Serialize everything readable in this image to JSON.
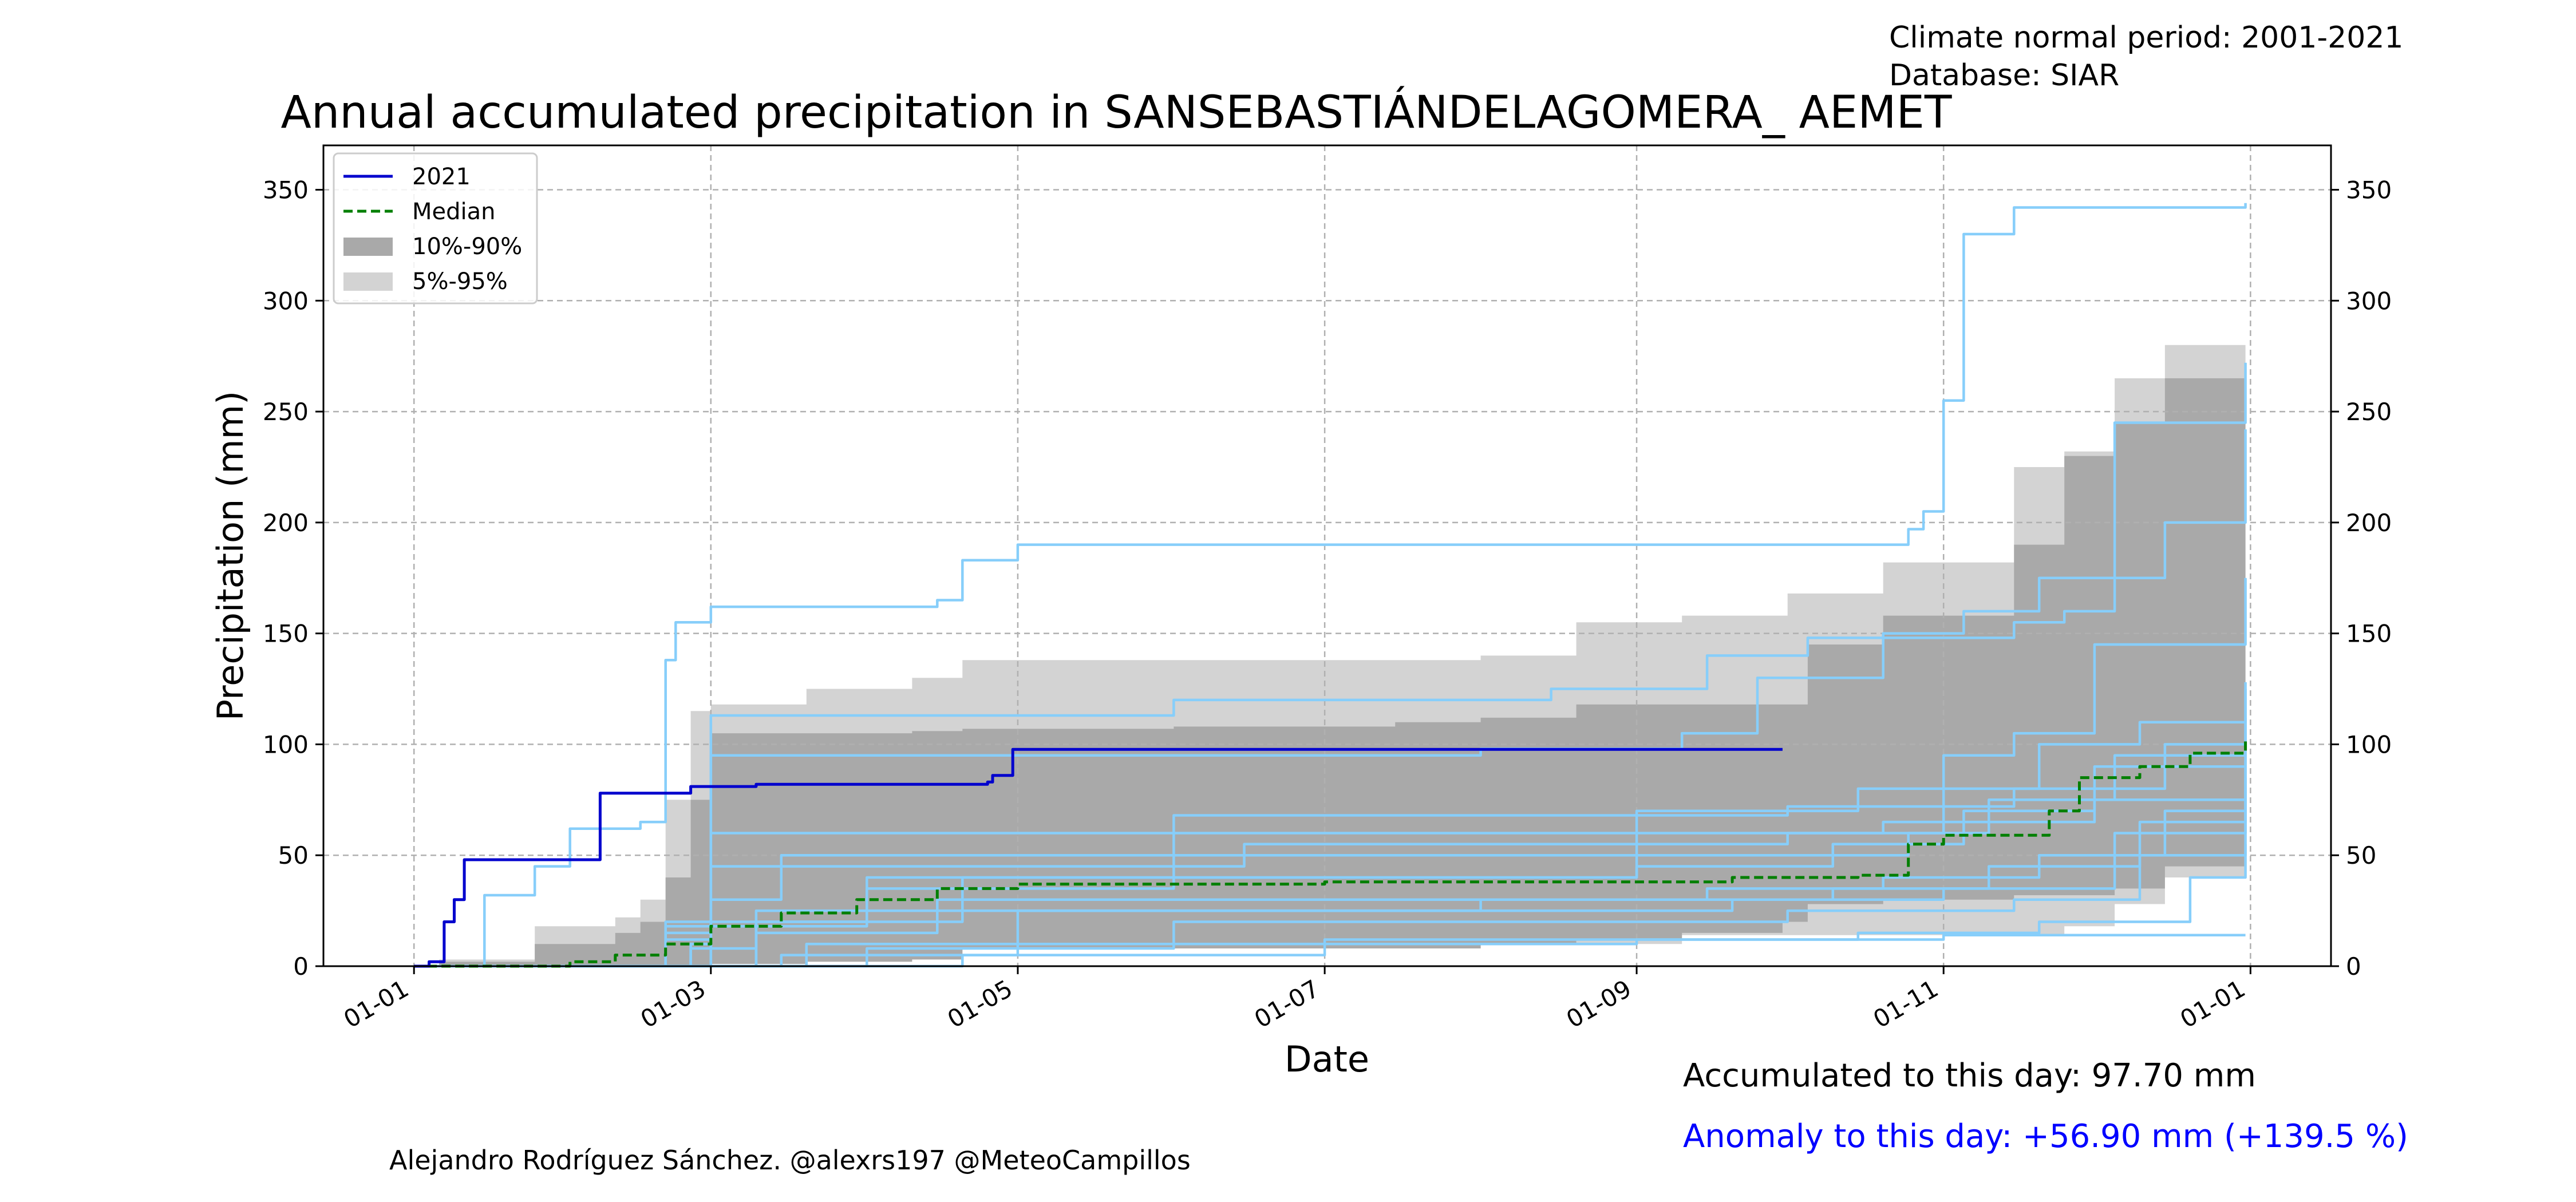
{
  "header": {
    "period_line": "Climate normal period: 2001-2021",
    "database_line": "Database: SIAR"
  },
  "footer": {
    "accumulated": "Accumulated to this day: 97.70 mm",
    "anomaly": "Anomaly to this day: +56.90 mm (+139.5 %)",
    "credit": "Alejandro Rodríguez Sánchez. @alexrs197 @MeteoCampillos"
  },
  "colors": {
    "current_year": "#0000cd",
    "median": "#007f00",
    "band_10_90": "#a9a9a9",
    "band_5_95": "#d3d3d3",
    "past_years": "#87cefa",
    "anomaly_text": "#0000ff"
  },
  "chart_data": {
    "type": "line",
    "title": "Annual accumulated precipitation in SANSEBASTIÁNDELAGOMERA_ AEMET",
    "xlabel": "Date",
    "ylabel": "Precipitation (mm)",
    "xlim": [
      "2020-12-14",
      "2022-01-17"
    ],
    "ylim": [
      0,
      370
    ],
    "x_ticks": [
      {
        "date": "2021-01-01",
        "label": "01-01"
      },
      {
        "date": "2021-03-01",
        "label": "01-03"
      },
      {
        "date": "2021-05-01",
        "label": "01-05"
      },
      {
        "date": "2021-07-01",
        "label": "01-07"
      },
      {
        "date": "2021-09-01",
        "label": "01-09"
      },
      {
        "date": "2021-11-01",
        "label": "01-11"
      },
      {
        "date": "2022-01-01",
        "label": "01-01"
      }
    ],
    "y_ticks": [
      0,
      50,
      100,
      150,
      200,
      250,
      300,
      350
    ],
    "grid": true,
    "legend_position": "top-left",
    "legend": [
      {
        "label": "2021",
        "kind": "line",
        "color": "#0000cd"
      },
      {
        "label": "Median",
        "kind": "dashed",
        "color": "#007f00"
      },
      {
        "label": "10%-90%",
        "kind": "patch",
        "color": "#a9a9a9"
      },
      {
        "label": "5%-95%",
        "kind": "patch",
        "color": "#d3d3d3"
      }
    ],
    "band_5_95": {
      "x": [
        "2021-01-06",
        "2021-01-25",
        "2021-02-10",
        "2021-02-15",
        "2021-02-20",
        "2021-02-25",
        "2021-03-01",
        "2021-03-20",
        "2021-04-10",
        "2021-04-20",
        "2021-06-01",
        "2021-07-15",
        "2021-08-01",
        "2021-08-20",
        "2021-09-10",
        "2021-10-01",
        "2021-10-20",
        "2021-11-15",
        "2021-11-25",
        "2021-12-05",
        "2021-12-15",
        "2021-12-31"
      ],
      "upper": [
        3,
        18,
        22,
        30,
        75,
        115,
        118,
        125,
        130,
        138,
        138,
        138,
        140,
        155,
        158,
        168,
        182,
        225,
        232,
        265,
        280,
        287
      ],
      "lower": [
        0,
        0,
        0,
        0,
        0,
        1,
        2,
        4,
        5,
        8,
        8,
        8,
        10,
        10,
        14,
        14,
        14,
        14,
        18,
        28,
        40,
        50
      ]
    },
    "band_10_90": {
      "x": [
        "2021-01-06",
        "2021-01-25",
        "2021-02-10",
        "2021-02-15",
        "2021-02-20",
        "2021-02-25",
        "2021-03-01",
        "2021-03-20",
        "2021-04-10",
        "2021-04-20",
        "2021-06-01",
        "2021-07-15",
        "2021-08-01",
        "2021-08-20",
        "2021-09-10",
        "2021-09-30",
        "2021-10-05",
        "2021-10-20",
        "2021-11-15",
        "2021-11-25",
        "2021-12-05",
        "2021-12-15",
        "2021-12-31"
      ],
      "upper": [
        2,
        10,
        15,
        20,
        40,
        75,
        105,
        105,
        106,
        107,
        108,
        110,
        112,
        118,
        118,
        118,
        145,
        158,
        190,
        230,
        245,
        265,
        273
      ],
      "lower": [
        0,
        0,
        0,
        0,
        0,
        0,
        1,
        2,
        3,
        8,
        8,
        8,
        10,
        12,
        15,
        20,
        28,
        30,
        32,
        32,
        35,
        45,
        50
      ]
    },
    "series": [
      {
        "name": "2021",
        "style": "line",
        "color": "#0000cd",
        "x": [
          "2021-01-01",
          "2021-01-04",
          "2021-01-07",
          "2021-01-09",
          "2021-01-11",
          "2021-02-06",
          "2021-02-07",
          "2021-02-25",
          "2021-03-10",
          "2021-04-01",
          "2021-04-25",
          "2021-04-26",
          "2021-04-29",
          "2021-04-30",
          "2021-09-30"
        ],
        "y": [
          0,
          2,
          20,
          30,
          48,
          48,
          78,
          81,
          82,
          82,
          83,
          86,
          86,
          97.7,
          97.7
        ]
      },
      {
        "name": "Median",
        "style": "dashed",
        "color": "#007f00",
        "x": [
          "2021-01-01",
          "2021-01-20",
          "2021-02-01",
          "2021-02-10",
          "2021-02-20",
          "2021-03-01",
          "2021-03-15",
          "2021-03-30",
          "2021-04-15",
          "2021-05-01",
          "2021-07-01",
          "2021-09-01",
          "2021-09-20",
          "2021-10-15",
          "2021-10-25",
          "2021-11-01",
          "2021-11-15",
          "2021-11-22",
          "2021-11-28",
          "2021-12-10",
          "2021-12-20",
          "2021-12-31"
        ],
        "y": [
          0,
          0,
          2,
          5,
          10,
          18,
          24,
          30,
          35,
          37,
          38,
          38,
          40,
          41,
          55,
          59,
          59,
          70,
          85,
          90,
          96,
          102
        ]
      },
      {
        "style": "line",
        "color": "#87cefa",
        "x": [
          "2021-01-05",
          "2021-01-15",
          "2021-01-25",
          "2021-02-01",
          "2021-02-15",
          "2021-02-20",
          "2021-02-22",
          "2021-03-01",
          "2021-04-15",
          "2021-04-20",
          "2021-05-01",
          "2021-10-20",
          "2021-10-25",
          "2021-10-28",
          "2021-11-01",
          "2021-11-05",
          "2021-11-10",
          "2021-11-15",
          "2021-12-31"
        ],
        "y": [
          0,
          32,
          45,
          62,
          65,
          138,
          155,
          162,
          165,
          183,
          190,
          190,
          197,
          205,
          255,
          330,
          330,
          342,
          344
        ]
      },
      {
        "style": "line",
        "color": "#87cefa",
        "x": [
          "2021-01-10",
          "2021-02-20",
          "2021-03-01",
          "2021-06-01",
          "2021-08-15",
          "2021-09-15",
          "2021-10-05",
          "2021-11-15",
          "2021-11-25",
          "2021-12-05",
          "2021-12-31"
        ],
        "y": [
          0,
          20,
          113,
          120,
          125,
          140,
          148,
          155,
          160,
          245,
          272
        ]
      },
      {
        "style": "line",
        "color": "#87cefa",
        "x": [
          "2021-01-10",
          "2021-02-20",
          "2021-03-01",
          "2021-08-01",
          "2021-09-10",
          "2021-09-25",
          "2021-10-20",
          "2021-11-05",
          "2021-11-20",
          "2021-12-15",
          "2021-12-31"
        ],
        "y": [
          0,
          15,
          95,
          98,
          105,
          130,
          150,
          160,
          175,
          200,
          242
        ]
      },
      {
        "style": "line",
        "color": "#87cefa",
        "x": [
          "2021-01-15",
          "2021-02-25",
          "2021-03-01",
          "2021-09-01",
          "2021-10-15",
          "2021-11-01",
          "2021-11-15",
          "2021-12-01",
          "2021-12-31"
        ],
        "y": [
          0,
          10,
          60,
          70,
          80,
          95,
          105,
          145,
          175
        ]
      },
      {
        "style": "line",
        "color": "#87cefa",
        "x": [
          "2021-01-15",
          "2021-03-01",
          "2021-03-15",
          "2021-09-01",
          "2021-10-20",
          "2021-11-01",
          "2021-11-20",
          "2021-12-10",
          "2021-12-31"
        ],
        "y": [
          0,
          30,
          50,
          60,
          65,
          80,
          100,
          110,
          128
        ]
      },
      {
        "style": "line",
        "color": "#87cefa",
        "x": [
          "2021-01-20",
          "2021-03-10",
          "2021-04-01",
          "2021-09-01",
          "2021-10-10",
          "2021-11-05",
          "2021-12-01",
          "2021-12-31"
        ],
        "y": [
          0,
          20,
          40,
          45,
          55,
          70,
          90,
          105
        ]
      },
      {
        "style": "line",
        "color": "#87cefa",
        "x": [
          "2021-01-20",
          "2021-03-10",
          "2021-04-15",
          "2021-09-15",
          "2021-10-20",
          "2021-11-20",
          "2021-12-15",
          "2021-12-31"
        ],
        "y": [
          0,
          15,
          30,
          35,
          40,
          50,
          70,
          95
        ]
      },
      {
        "style": "line",
        "color": "#87cefa",
        "x": [
          "2021-02-01",
          "2021-03-20",
          "2021-05-01",
          "2021-09-20",
          "2021-11-01",
          "2021-12-05",
          "2021-12-31"
        ],
        "y": [
          0,
          10,
          25,
          30,
          35,
          60,
          80
        ]
      },
      {
        "style": "line",
        "color": "#87cefa",
        "x": [
          "2021-02-01",
          "2021-04-01",
          "2021-06-01",
          "2021-10-01",
          "2021-11-15",
          "2021-12-10",
          "2021-12-31"
        ],
        "y": [
          0,
          8,
          20,
          25,
          30,
          50,
          70
        ]
      },
      {
        "style": "line",
        "color": "#87cefa",
        "x": [
          "2021-02-10",
          "2021-04-20",
          "2021-07-01",
          "2021-10-15",
          "2021-11-20",
          "2021-12-20",
          "2021-12-31"
        ],
        "y": [
          0,
          5,
          12,
          15,
          20,
          40,
          55
        ]
      },
      {
        "style": "line",
        "color": "#87cefa",
        "x": [
          "2021-01-05",
          "2021-02-20",
          "2021-03-01",
          "2021-06-15",
          "2021-10-01",
          "2021-11-01",
          "2021-12-01",
          "2021-12-31"
        ],
        "y": [
          0,
          12,
          45,
          55,
          60,
          65,
          75,
          90
        ]
      },
      {
        "style": "line",
        "color": "#87cefa",
        "x": [
          "2021-01-10",
          "2021-02-25",
          "2021-03-10",
          "2021-08-01",
          "2021-10-10",
          "2021-11-10",
          "2021-12-10",
          "2021-12-31"
        ],
        "y": [
          0,
          8,
          25,
          30,
          35,
          45,
          65,
          85
        ]
      },
      {
        "style": "line",
        "color": "#87cefa",
        "x": [
          "2021-01-15",
          "2021-03-15",
          "2021-05-01",
          "2021-09-01",
          "2021-11-01",
          "2021-11-25",
          "2021-12-31"
        ],
        "y": [
          0,
          5,
          10,
          12,
          14,
          14,
          14
        ]
      },
      {
        "style": "line",
        "color": "#87cefa",
        "x": [
          "2021-01-10",
          "2021-02-20",
          "2021-04-01",
          "2021-06-01",
          "2021-10-01",
          "2021-11-15",
          "2021-12-15",
          "2021-12-31"
        ],
        "y": [
          0,
          18,
          35,
          68,
          72,
          80,
          100,
          125
        ]
      },
      {
        "style": "line",
        "color": "#87cefa",
        "x": [
          "2021-01-20",
          "2021-03-01",
          "2021-04-20",
          "2021-09-01",
          "2021-10-25",
          "2021-11-10",
          "2021-12-05",
          "2021-12-31"
        ],
        "y": [
          0,
          20,
          40,
          50,
          60,
          75,
          95,
          112
        ]
      }
    ]
  }
}
